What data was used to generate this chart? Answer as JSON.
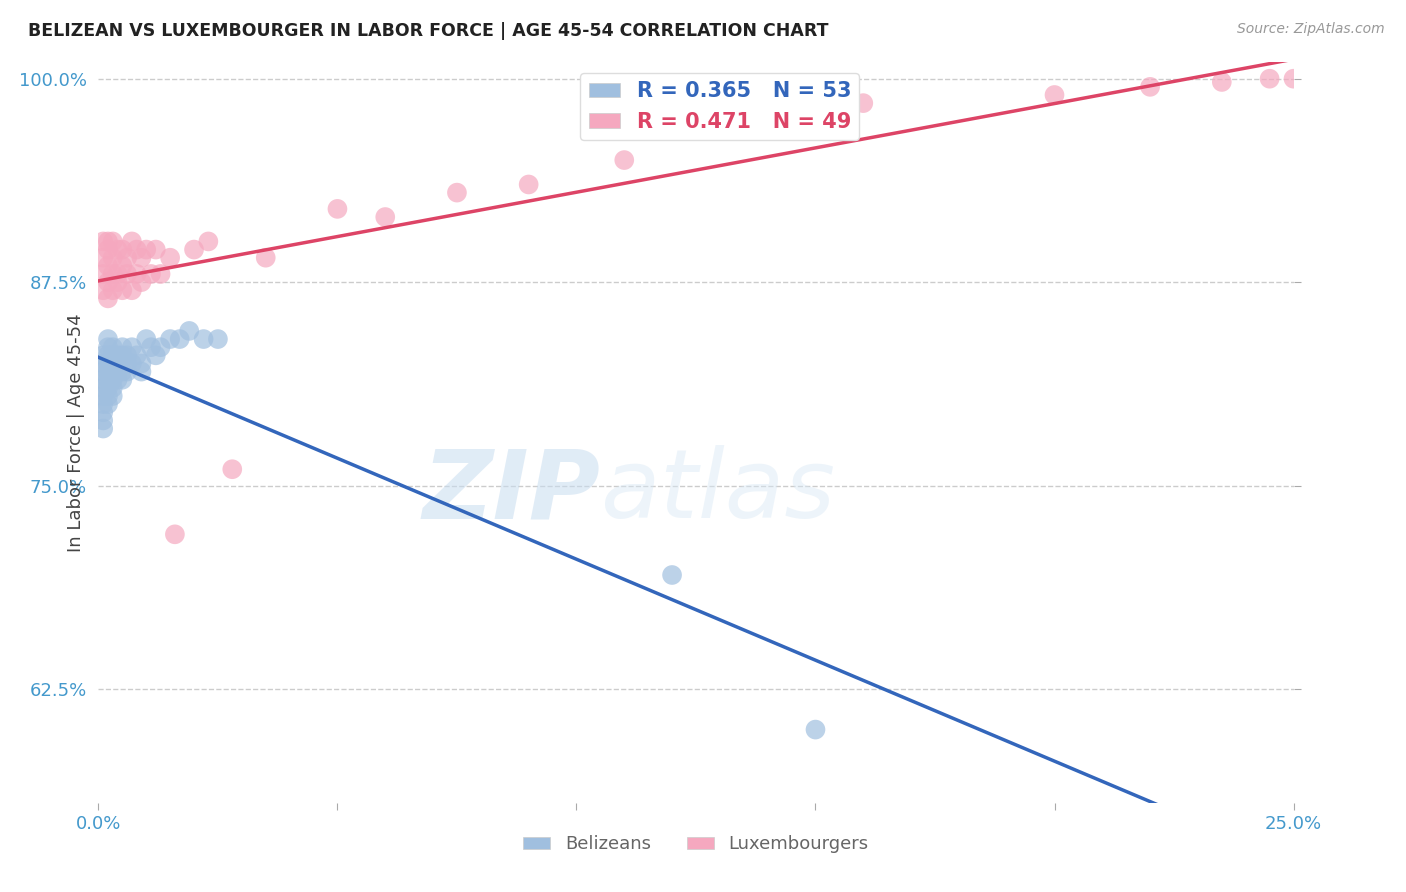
{
  "title": "BELIZEAN VS LUXEMBOURGER IN LABOR FORCE | AGE 45-54 CORRELATION CHART",
  "source": "Source: ZipAtlas.com",
  "ylabel": "In Labor Force | Age 45-54",
  "xlim": [
    0.0,
    0.25
  ],
  "ylim": [
    0.555,
    1.01
  ],
  "xtick_positions": [
    0.0,
    0.05,
    0.1,
    0.15,
    0.2,
    0.25
  ],
  "xticklabels": [
    "0.0%",
    "",
    "",
    "",
    "",
    "25.0%"
  ],
  "ytick_positions": [
    0.625,
    0.75,
    0.875,
    1.0
  ],
  "yticklabels": [
    "62.5%",
    "75.0%",
    "87.5%",
    "100.0%"
  ],
  "belizean_color": "#a0bfdf",
  "luxembourger_color": "#f5a8bf",
  "belizean_line_color": "#3366bb",
  "luxembourger_line_color": "#dd4466",
  "R_belizean": 0.365,
  "N_belizean": 53,
  "R_luxembourger": 0.471,
  "N_luxembourger": 49,
  "legend_label_belizean": "Belizeans",
  "legend_label_luxembourger": "Luxembourgers",
  "watermark_zip": "ZIP",
  "watermark_atlas": "atlas",
  "background_color": "#ffffff",
  "title_color": "#222222",
  "axis_label_color": "#444444",
  "tick_color": "#4499cc",
  "grid_color": "#cccccc",
  "belizean_x": [
    0.001,
    0.001,
    0.001,
    0.001,
    0.001,
    0.001,
    0.001,
    0.001,
    0.001,
    0.001,
    0.002,
    0.002,
    0.002,
    0.002,
    0.002,
    0.002,
    0.002,
    0.002,
    0.002,
    0.003,
    0.003,
    0.003,
    0.003,
    0.003,
    0.003,
    0.003,
    0.004,
    0.004,
    0.004,
    0.004,
    0.005,
    0.005,
    0.005,
    0.005,
    0.006,
    0.006,
    0.006,
    0.007,
    0.007,
    0.008,
    0.009,
    0.009,
    0.01,
    0.011,
    0.012,
    0.013,
    0.015,
    0.017,
    0.019,
    0.022,
    0.025,
    0.12,
    0.15
  ],
  "belizean_y": [
    0.83,
    0.825,
    0.82,
    0.815,
    0.81,
    0.805,
    0.8,
    0.795,
    0.79,
    0.785,
    0.84,
    0.835,
    0.83,
    0.825,
    0.82,
    0.815,
    0.81,
    0.805,
    0.8,
    0.835,
    0.83,
    0.825,
    0.82,
    0.815,
    0.81,
    0.805,
    0.83,
    0.825,
    0.82,
    0.815,
    0.835,
    0.83,
    0.82,
    0.815,
    0.83,
    0.825,
    0.82,
    0.835,
    0.825,
    0.83,
    0.825,
    0.82,
    0.84,
    0.835,
    0.83,
    0.835,
    0.84,
    0.84,
    0.845,
    0.84,
    0.84,
    0.695,
    0.6
  ],
  "luxembourger_x": [
    0.001,
    0.001,
    0.001,
    0.001,
    0.002,
    0.002,
    0.002,
    0.002,
    0.002,
    0.003,
    0.003,
    0.003,
    0.003,
    0.004,
    0.004,
    0.004,
    0.005,
    0.005,
    0.005,
    0.006,
    0.006,
    0.007,
    0.007,
    0.008,
    0.008,
    0.009,
    0.009,
    0.01,
    0.011,
    0.012,
    0.013,
    0.015,
    0.016,
    0.02,
    0.023,
    0.028,
    0.035,
    0.05,
    0.06,
    0.075,
    0.09,
    0.11,
    0.14,
    0.16,
    0.2,
    0.22,
    0.235,
    0.245,
    0.25
  ],
  "luxembourger_y": [
    0.88,
    0.89,
    0.9,
    0.87,
    0.895,
    0.885,
    0.875,
    0.9,
    0.865,
    0.89,
    0.88,
    0.9,
    0.87,
    0.895,
    0.88,
    0.875,
    0.895,
    0.885,
    0.87,
    0.89,
    0.88,
    0.9,
    0.87,
    0.895,
    0.88,
    0.89,
    0.875,
    0.895,
    0.88,
    0.895,
    0.88,
    0.89,
    0.72,
    0.895,
    0.9,
    0.76,
    0.89,
    0.92,
    0.915,
    0.93,
    0.935,
    0.95,
    0.97,
    0.985,
    0.99,
    0.995,
    0.998,
    1.0,
    1.0
  ]
}
